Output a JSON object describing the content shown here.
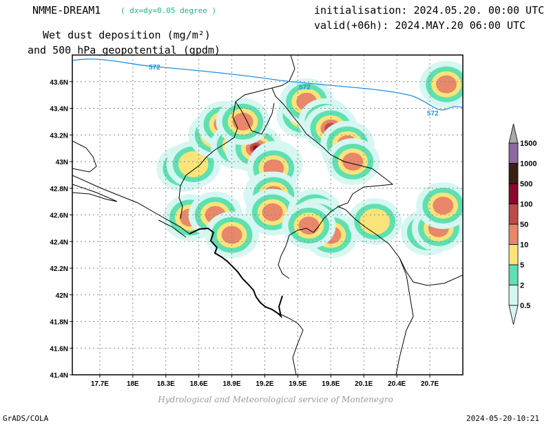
{
  "header": {
    "model_name": "NMME-DREAM1",
    "resolution_note": "( dx=dy=0.05 degree )",
    "initialisation": "initialisation: 2024.05.20. 00:00 UTC",
    "valid": "valid(+06h): 2024.MAY.20 06:00 UTC",
    "title_line1": "Wet dust deposition (mg/m²)",
    "title_line2": "and 500 hPa geopotential (gpdm)"
  },
  "footer": {
    "credit": "Hydrological and Meteorological service of Montenegro",
    "software": "GrADS/COLA",
    "timestamp": "2024-05-20-10:21"
  },
  "map": {
    "lon_range": [
      17.45,
      21.0
    ],
    "lat_range": [
      41.4,
      43.8
    ],
    "x_ticks": [
      "17.7E",
      "18E",
      "18.3E",
      "18.6E",
      "18.9E",
      "19.2E",
      "19.5E",
      "19.8E",
      "20.1E",
      "20.4E",
      "20.7E"
    ],
    "x_tick_values": [
      17.7,
      18.0,
      18.3,
      18.6,
      18.9,
      19.2,
      19.5,
      19.8,
      20.1,
      20.4,
      20.7
    ],
    "y_ticks": [
      "43.6N",
      "43.4N",
      "43.2N",
      "43N",
      "42.8N",
      "42.6N",
      "42.4N",
      "42.2N",
      "42N",
      "41.8N",
      "41.6N",
      "41.4N"
    ],
    "y_tick_values": [
      43.6,
      43.4,
      43.2,
      43.0,
      42.8,
      42.6,
      42.4,
      42.2,
      42.0,
      41.8,
      41.6,
      41.4
    ],
    "grid": true,
    "contour_label": "572",
    "contour_color": "#1e90e0",
    "dust_cells": [
      {
        "lon": 18.46,
        "lat": 42.95,
        "level": 10
      },
      {
        "lon": 18.55,
        "lat": 42.98,
        "level": 5
      },
      {
        "lon": 18.75,
        "lat": 43.2,
        "level": 10
      },
      {
        "lon": 18.83,
        "lat": 43.28,
        "level": 50
      },
      {
        "lon": 18.95,
        "lat": 43.12,
        "level": 10
      },
      {
        "lon": 19.08,
        "lat": 43.1,
        "level": 50
      },
      {
        "lon": 19.12,
        "lat": 43.1,
        "level": 100
      },
      {
        "lon": 19.0,
        "lat": 43.3,
        "level": 10
      },
      {
        "lon": 19.3,
        "lat": 42.98,
        "level": 50
      },
      {
        "lon": 19.28,
        "lat": 42.95,
        "level": 10
      },
      {
        "lon": 19.25,
        "lat": 42.75,
        "level": 10
      },
      {
        "lon": 19.28,
        "lat": 42.75,
        "level": 50
      },
      {
        "lon": 19.27,
        "lat": 42.62,
        "level": 10
      },
      {
        "lon": 19.55,
        "lat": 43.35,
        "level": 10
      },
      {
        "lon": 19.58,
        "lat": 43.45,
        "level": 10
      },
      {
        "lon": 19.75,
        "lat": 43.3,
        "level": 10
      },
      {
        "lon": 19.8,
        "lat": 43.25,
        "level": 50
      },
      {
        "lon": 19.95,
        "lat": 43.1,
        "level": 50
      },
      {
        "lon": 19.95,
        "lat": 43.13,
        "level": 100
      },
      {
        "lon": 20.0,
        "lat": 43.0,
        "level": 10
      },
      {
        "lon": 19.65,
        "lat": 42.62,
        "level": 50
      },
      {
        "lon": 19.68,
        "lat": 42.55,
        "level": 50
      },
      {
        "lon": 19.8,
        "lat": 42.45,
        "level": 10
      },
      {
        "lon": 19.6,
        "lat": 42.52,
        "level": 10
      },
      {
        "lon": 18.52,
        "lat": 42.58,
        "level": 10
      },
      {
        "lon": 18.75,
        "lat": 42.6,
        "level": 10
      },
      {
        "lon": 18.9,
        "lat": 42.45,
        "level": 10
      },
      {
        "lon": 20.68,
        "lat": 42.47,
        "level": 10
      },
      {
        "lon": 20.78,
        "lat": 42.5,
        "level": 10
      },
      {
        "lon": 20.85,
        "lat": 43.58,
        "level": 10
      },
      {
        "lon": 20.2,
        "lat": 42.55,
        "level": 5
      },
      {
        "lon": 20.82,
        "lat": 42.67,
        "level": 10
      }
    ]
  },
  "colorbar": {
    "labels": [
      "0.5",
      "2",
      "5",
      "10",
      "50",
      "100",
      "500",
      "1000",
      "1500"
    ],
    "colors": [
      "#d6f6f2",
      "#5fe0b0",
      "#f9e47a",
      "#e8876a",
      "#bd4b47",
      "#8a0a2e",
      "#3b1f12",
      "#8a6aa0"
    ],
    "top_color": "#a9a9a9"
  }
}
